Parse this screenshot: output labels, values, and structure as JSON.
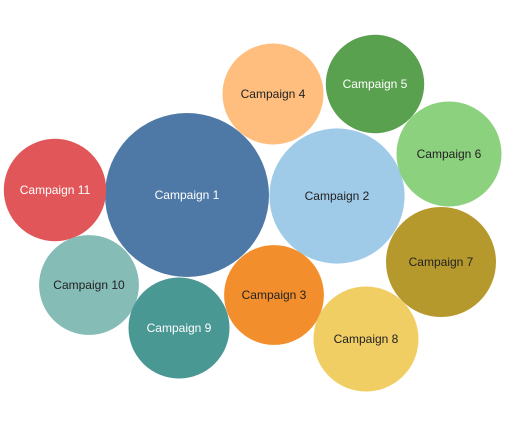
{
  "chart_data": {
    "type": "bubble",
    "title": "",
    "legend": "none",
    "grid": false,
    "series": [
      {
        "label": "Campaign 1",
        "value": 100,
        "color": "#4e79a7",
        "text_color": "#ffffff"
      },
      {
        "label": "Campaign 2",
        "value": 68,
        "color": "#a0cbe8",
        "text_color": "#222222"
      },
      {
        "label": "Campaign 4",
        "value": 38,
        "color": "#ffbe7d",
        "text_color": "#222222"
      },
      {
        "label": "Campaign 5",
        "value": 36,
        "color": "#59a14f",
        "text_color": "#ffffff"
      },
      {
        "label": "Campaign 6",
        "value": 41,
        "color": "#8cd17d",
        "text_color": "#222222"
      },
      {
        "label": "Campaign 11",
        "value": 39,
        "color": "#e15759",
        "text_color": "#ffffff"
      },
      {
        "label": "Campaign 7",
        "value": 45,
        "color": "#b6992d",
        "text_color": "#222222"
      },
      {
        "label": "Campaign 10",
        "value": 37,
        "color": "#86bcb6",
        "text_color": "#222222"
      },
      {
        "label": "Campaign 3",
        "value": 37,
        "color": "#f28e2b",
        "text_color": "#222222"
      },
      {
        "label": "Campaign 9",
        "value": 38,
        "color": "#499894",
        "text_color": "#ffffff"
      },
      {
        "label": "Campaign 8",
        "value": 41,
        "color": "#f1ce63",
        "text_color": "#222222"
      }
    ]
  }
}
